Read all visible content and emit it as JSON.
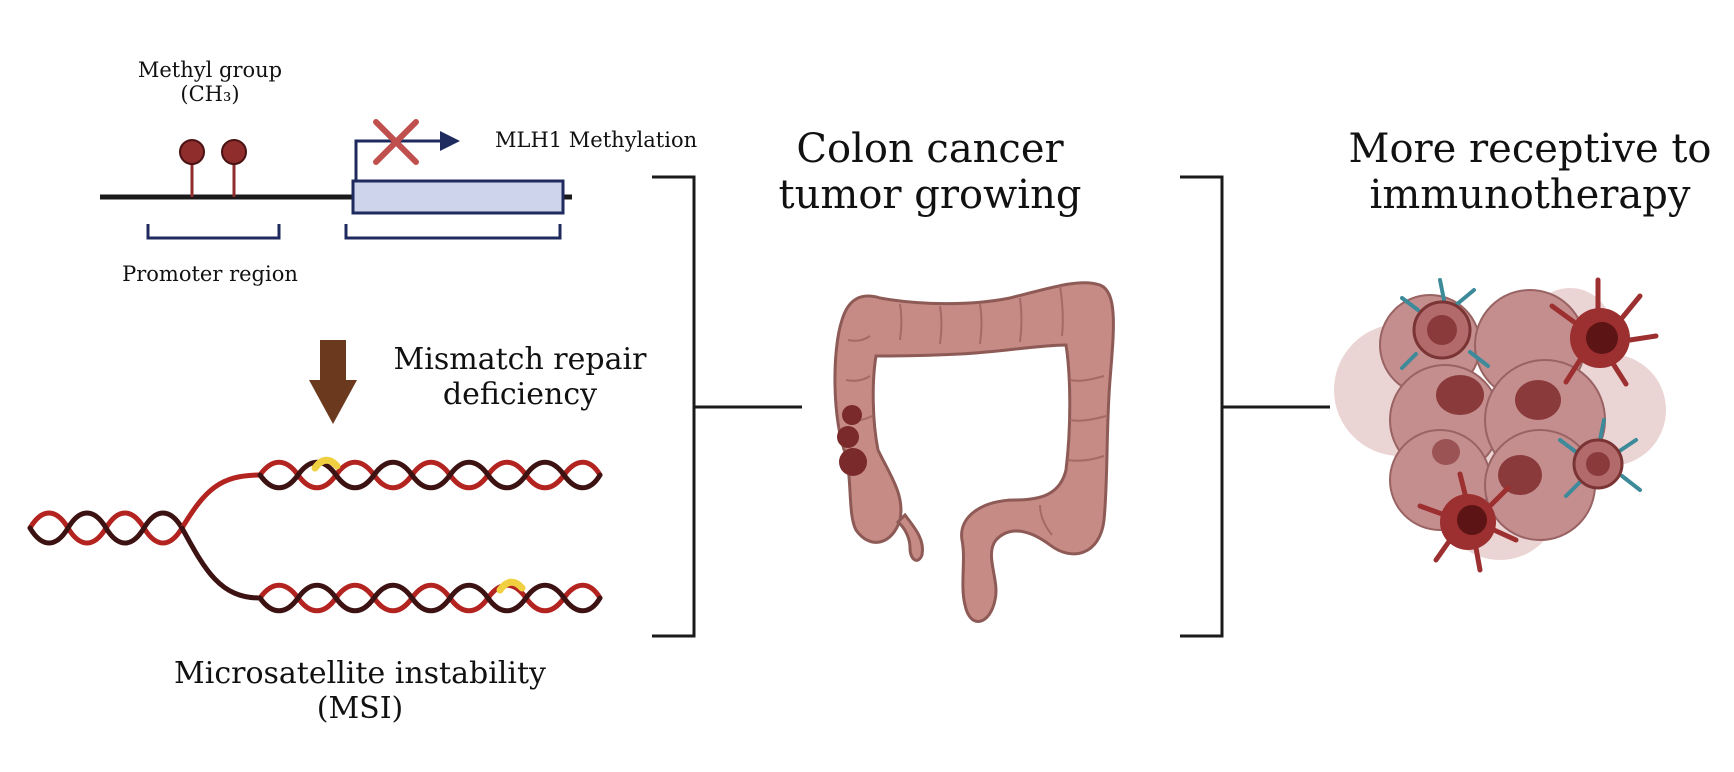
{
  "methylation": {
    "methyl_group_line1": "Methyl group",
    "methyl_group_line2": "(CH₃)",
    "gene_label": "MLH1 Methylation",
    "promoter_label": "Promoter region"
  },
  "repair": {
    "line1": "Mismatch repair",
    "line2": "deficiency"
  },
  "msi": {
    "line1": "Microsatellite instability",
    "line2": "(MSI)"
  },
  "colon": {
    "line1": "Colon cancer",
    "line2": "tumor growing"
  },
  "immuno": {
    "line1": "More receptive to",
    "line2": "immunotherapy"
  },
  "colors": {
    "dna_red": "#b3231f",
    "dna_dark": "#3d1212",
    "methyl": "#8f2d2d",
    "gene_box": "#cdd4ec",
    "gene_border": "#1f2b5e",
    "arrow_brown": "#6b3a1e",
    "mismatch": "#f0d040",
    "colon": "#c78b86",
    "tumor": "#7a2a2a"
  }
}
